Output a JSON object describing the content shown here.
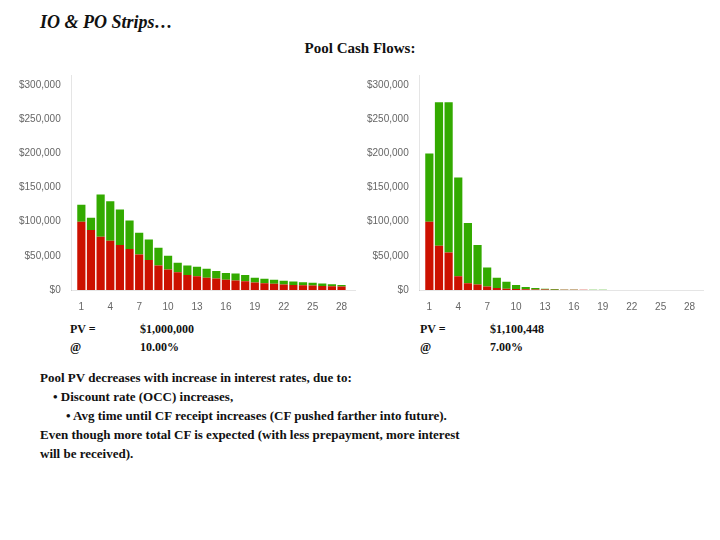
{
  "title": "IO & PO Strips…",
  "subtitle": "Pool Cash Flows:",
  "annotations": [
    "Pool PV decreases with increase in interest rates, due to:",
    "    • Discount rate (OCC) increases,",
    "        • Avg time until CF receipt increases (CF pushed farther into future).",
    "Even though more total CF is expected (with less prepayment, more interest",
    "will be received)."
  ],
  "chart_data": [
    {
      "type": "bar",
      "stacked": true,
      "grid": false,
      "x": [
        1,
        2,
        3,
        4,
        5,
        6,
        7,
        8,
        9,
        10,
        11,
        12,
        13,
        14,
        15,
        16,
        17,
        18,
        19,
        20,
        21,
        22,
        23,
        24,
        25,
        26,
        27,
        28
      ],
      "xlim": [
        0.0,
        29.5
      ],
      "xticks": [
        1,
        4,
        7,
        10,
        13,
        16,
        19,
        22,
        25,
        28
      ],
      "ylim": [
        0,
        315000
      ],
      "yticks": [
        {
          "value": 0,
          "label": "$0"
        },
        {
          "value": 50000,
          "label": "$50,000"
        },
        {
          "value": 100000,
          "label": "$100,000"
        },
        {
          "value": 150000,
          "label": "$150,000"
        },
        {
          "value": 200000,
          "label": "$200,000"
        },
        {
          "value": 250000,
          "label": "$250,000"
        },
        {
          "value": 300000,
          "label": "$300,000"
        }
      ],
      "series": [
        {
          "color": "#cc1100",
          "values": [
            100000,
            88000,
            78000,
            72000,
            66000,
            60000,
            52000,
            44000,
            36000,
            30000,
            26000,
            22000,
            20000,
            18000,
            17000,
            15000,
            14000,
            13000,
            11000,
            10000,
            9000,
            8000,
            7500,
            7000,
            6500,
            6000,
            5500,
            5000
          ]
        },
        {
          "color": "#33aa00",
          "values": [
            25000,
            18000,
            62000,
            58000,
            52000,
            42000,
            32000,
            30000,
            26000,
            20000,
            14000,
            14000,
            14000,
            13000,
            11000,
            10000,
            10000,
            9000,
            7000,
            6500,
            6000,
            5500,
            5000,
            4500,
            4000,
            3500,
            3000,
            2500
          ]
        }
      ],
      "annotations": [
        "PV =",
        "$1,000,000",
        "@",
        "10.00%"
      ]
    },
    {
      "type": "bar",
      "stacked": true,
      "grid": false,
      "x": [
        1,
        2,
        3,
        4,
        5,
        6,
        7,
        8,
        9,
        10,
        11,
        12,
        13,
        14,
        15,
        16,
        17,
        18,
        19,
        20,
        21,
        22,
        23,
        24,
        25,
        26,
        27,
        28
      ],
      "xlim": [
        0.0,
        29.5
      ],
      "xticks": [
        1,
        4,
        7,
        10,
        13,
        16,
        19,
        22,
        25,
        28
      ],
      "ylim": [
        0,
        315000
      ],
      "yticks": [
        {
          "value": 0,
          "label": "$0"
        },
        {
          "value": 50000,
          "label": "$50,000"
        },
        {
          "value": 100000,
          "label": "$100,000"
        },
        {
          "value": 150000,
          "label": "$150,000"
        },
        {
          "value": 200000,
          "label": "$200,000"
        },
        {
          "value": 250000,
          "label": "$250,000"
        },
        {
          "value": 300000,
          "label": "$300,000"
        }
      ],
      "series": [
        {
          "color": "#cc1100",
          "values": [
            100000,
            65000,
            55000,
            20000,
            10000,
            8000,
            5000,
            3000,
            2000,
            1500,
            1000,
            800,
            600,
            500,
            400,
            300,
            200,
            150,
            100,
            80,
            60,
            40,
            30,
            20,
            15,
            10,
            8,
            5
          ]
        },
        {
          "color": "#33aa00",
          "values": [
            100000,
            210000,
            220000,
            145000,
            88000,
            58000,
            28000,
            15000,
            10000,
            6000,
            3500,
            2000,
            1200,
            800,
            500,
            350,
            250,
            150,
            100,
            70,
            50,
            30,
            20,
            15,
            10,
            8,
            5,
            3
          ]
        }
      ],
      "annotations": [
        "PV =",
        "$1,100,448",
        "@",
        "7.00%"
      ]
    }
  ]
}
